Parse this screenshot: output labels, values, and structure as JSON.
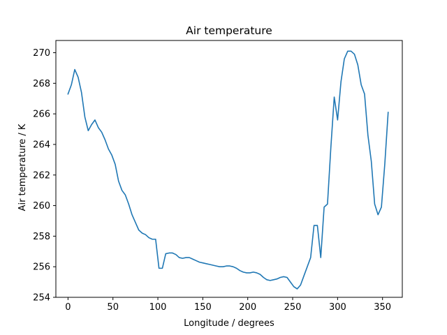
{
  "chart_data": {
    "type": "line",
    "title": "Air temperature",
    "xlabel": "Longitude / degrees",
    "ylabel": "Air temperature / K",
    "xlim": [
      -13.5,
      372
    ],
    "ylim": [
      254.0,
      270.8
    ],
    "xticks": [
      0,
      50,
      100,
      150,
      200,
      250,
      300,
      350
    ],
    "yticks": [
      254,
      256,
      258,
      260,
      262,
      264,
      266,
      268,
      270
    ],
    "grid": false,
    "line_color": "#1f77b4",
    "series": [
      {
        "x": [
          0,
          3.75,
          7.5,
          11.25,
          15,
          18.75,
          22.5,
          26.25,
          30,
          33.75,
          37.5,
          41.25,
          45,
          48.75,
          52.5,
          56.25,
          60,
          63.75,
          67.5,
          71.25,
          75,
          78.75,
          82.5,
          86.25,
          90,
          93.75,
          97.5,
          101.25,
          105,
          108.75,
          112.5,
          116.25,
          120,
          123.75,
          127.5,
          131.25,
          135,
          138.75,
          142.5,
          146.25,
          150,
          153.75,
          157.5,
          161.25,
          165,
          168.75,
          172.5,
          176.25,
          180,
          183.75,
          187.5,
          191.25,
          195,
          198.75,
          202.5,
          206.25,
          210,
          213.75,
          217.5,
          221.25,
          225,
          228.75,
          232.5,
          236.25,
          240,
          243.75,
          247.5,
          251.25,
          255,
          258.75,
          262.5,
          266.25,
          270,
          273.75,
          277.5,
          281.25,
          285,
          288.75,
          292.5,
          296.25,
          300,
          303.75,
          307.5,
          311.25,
          315,
          318.75,
          322.5,
          326.25,
          330,
          333.75,
          337.5,
          341.25,
          345,
          348.75,
          352.5,
          356.25
        ],
        "values": [
          267.3,
          267.9,
          268.9,
          268.4,
          267.4,
          265.8,
          264.9,
          265.3,
          265.6,
          265.1,
          264.8,
          264.3,
          263.7,
          263.3,
          262.7,
          261.6,
          261.0,
          260.7,
          260.1,
          259.4,
          258.9,
          258.4,
          258.2,
          258.1,
          257.9,
          257.8,
          257.8,
          255.9,
          255.9,
          256.85,
          256.9,
          256.9,
          256.8,
          256.6,
          256.55,
          256.6,
          256.6,
          256.5,
          256.4,
          256.3,
          256.25,
          256.2,
          256.15,
          256.1,
          256.05,
          256.0,
          256.0,
          256.05,
          256.05,
          256.0,
          255.9,
          255.75,
          255.65,
          255.6,
          255.6,
          255.65,
          255.6,
          255.5,
          255.3,
          255.15,
          255.1,
          255.15,
          255.2,
          255.3,
          255.35,
          255.3,
          255.0,
          254.7,
          254.55,
          254.8,
          255.4,
          256.0,
          256.6,
          258.7,
          258.7,
          256.6,
          259.9,
          260.1,
          263.8,
          267.1,
          265.6,
          268.1,
          269.6,
          270.1,
          270.1,
          269.9,
          269.2,
          267.9,
          267.3,
          264.6,
          262.9,
          260.1,
          259.4,
          259.9,
          262.7,
          266.1
        ]
      }
    ]
  }
}
